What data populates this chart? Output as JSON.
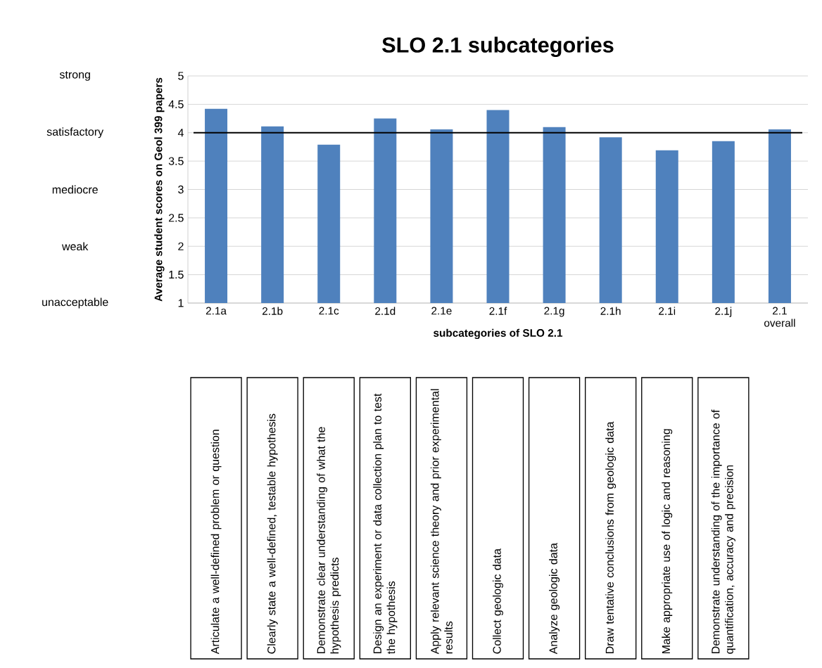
{
  "chart_data": {
    "type": "bar",
    "title": "SLO 2.1 subcategories",
    "xlabel": "subcategories of SLO 2.1",
    "ylabel": "Average student scores on Geol 399 papers",
    "categories": [
      "2.1a",
      "2.1b",
      "2.1c",
      "2.1d",
      "2.1e",
      "2.1f",
      "2.1g",
      "2.1h",
      "2.1i",
      "2.1j",
      "2.1 overall"
    ],
    "values": [
      4.42,
      4.11,
      3.79,
      4.25,
      4.06,
      4.4,
      4.1,
      3.92,
      3.69,
      3.85,
      4.06
    ],
    "color": "#4f81bd",
    "ylim": [
      1,
      5
    ],
    "yticks": [
      1,
      1.5,
      2,
      2.5,
      3,
      3.5,
      4,
      4.5,
      5
    ],
    "grid": "y",
    "ref_lines": [
      {
        "axis": "y",
        "value": 4,
        "color": "#000000"
      }
    ],
    "annotations": [
      "strong",
      "satisfactory",
      "mediocre",
      "weak",
      "unacceptable",
      "Articulate a well-defined problem or question",
      "Clearly state a well-defined, testable hypothesis",
      "Demonstrate clear understanding of what the hypothesis predicts",
      "Design an experiment or data collection plan to test the hypothesis",
      "Apply relevant science theory and prior experimental results",
      "Collect geologic data",
      "Analyze geologic data",
      "Draw tentative conclusions from geologic data",
      "Make appropriate use of logic and reasoning",
      "Demonstrate understanding of the importance of quantification, accuracy and precision"
    ]
  }
}
